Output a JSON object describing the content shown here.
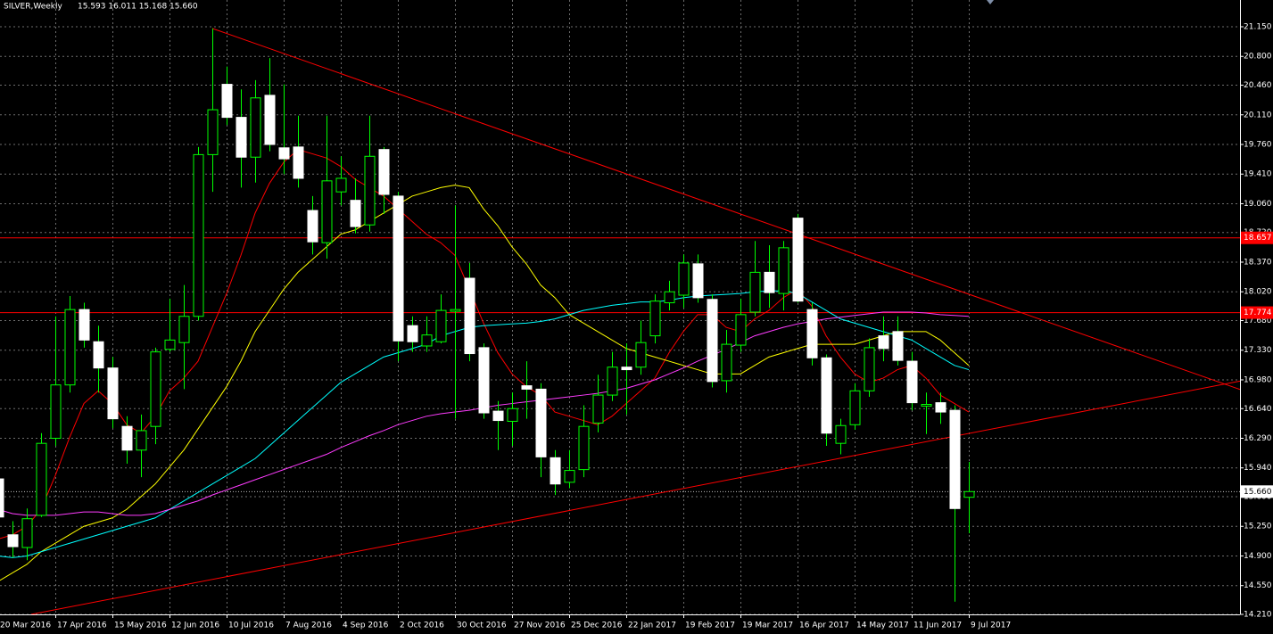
{
  "chart_data": {
    "type": "candlestick",
    "title": "SILVER,Weekly",
    "ohlc_text": "15.593 16.011 15.168 15.660",
    "categories": [
      "20 Mar 2016",
      null,
      null,
      null,
      "17 Apr 2016",
      null,
      null,
      null,
      "15 May 2016",
      null,
      null,
      null,
      "12 Jun 2016",
      null,
      null,
      null,
      "10 Jul 2016",
      null,
      null,
      null,
      "7 Aug 2016",
      null,
      null,
      null,
      "4 Sep 2016",
      null,
      null,
      null,
      "2 Oct 2016",
      null,
      null,
      null,
      "30 Oct 2016",
      null,
      null,
      null,
      "27 Nov 2016",
      null,
      null,
      null,
      "25 Dec 2016",
      null,
      null,
      null,
      "22 Jan 2017",
      null,
      null,
      null,
      "19 Feb 2017",
      null,
      null,
      null,
      "19 Mar 2017",
      null,
      null,
      null,
      "16 Apr 2017",
      null,
      null,
      null,
      "14 May 2017",
      null,
      null,
      null,
      "11 Jun 2017",
      null,
      null,
      null,
      "9 Jul 2017"
    ],
    "open": [
      15.81,
      15.15,
      15.0,
      15.38,
      16.29,
      16.92,
      17.81,
      17.43,
      17.12,
      16.43,
      16.15,
      16.43,
      17.34,
      17.42,
      17.73,
      19.64,
      20.47,
      20.08,
      19.61,
      20.34,
      19.72,
      19.73,
      18.98,
      18.6,
      19.2,
      19.1,
      18.81,
      19.7,
      19.15,
      17.62,
      17.38,
      17.43,
      17.79,
      18.18,
      17.36,
      16.61,
      16.49,
      16.91,
      16.87,
      16.06,
      15.77,
      15.92,
      16.47,
      16.8,
      17.13,
      17.13,
      17.5,
      17.89,
      17.98,
      18.35,
      17.93,
      16.97,
      17.39,
      17.78,
      18.25,
      18.0,
      18.89,
      17.81,
      17.24,
      16.23,
      16.45,
      16.85,
      17.5,
      17.55,
      17.2,
      16.67,
      16.71,
      16.62,
      15.593
    ],
    "high": [
      15.88,
      15.31,
      15.46,
      16.35,
      17.73,
      17.97,
      17.89,
      17.62,
      17.25,
      16.55,
      16.57,
      17.36,
      17.94,
      18.1,
      19.73,
      21.13,
      20.68,
      20.41,
      20.52,
      20.78,
      20.47,
      20.1,
      19.15,
      20.1,
      19.62,
      19.36,
      20.1,
      19.73,
      19.2,
      17.73,
      17.73,
      17.99,
      19.04,
      18.36,
      17.41,
      16.73,
      16.83,
      17.2,
      16.94,
      16.15,
      16.15,
      16.68,
      17.04,
      17.31,
      17.41,
      17.68,
      17.99,
      18.15,
      18.46,
      18.46,
      17.99,
      17.57,
      17.94,
      18.62,
      18.57,
      18.62,
      18.94,
      17.89,
      17.28,
      16.52,
      16.94,
      17.47,
      17.73,
      17.73,
      17.31,
      16.83,
      16.83,
      16.68,
      16.011
    ],
    "low": [
      15.31,
      14.88,
      14.85,
      15.36,
      16.2,
      16.83,
      17.36,
      16.83,
      16.41,
      15.99,
      15.83,
      16.22,
      17.31,
      16.87,
      17.68,
      19.2,
      19.99,
      19.25,
      19.31,
      19.68,
      19.41,
      19.25,
      18.46,
      18.41,
      19.04,
      18.71,
      18.73,
      18.94,
      17.2,
      17.31,
      17.31,
      17.41,
      16.52,
      17.2,
      16.52,
      16.15,
      16.2,
      16.52,
      15.83,
      15.62,
      15.7,
      15.83,
      16.36,
      16.73,
      16.57,
      17.04,
      17.41,
      17.8,
      17.83,
      17.89,
      16.89,
      16.83,
      17.31,
      17.73,
      17.83,
      17.8,
      17.89,
      17.15,
      16.2,
      16.1,
      16.39,
      16.78,
      17.2,
      17.15,
      16.62,
      16.34,
      16.46,
      14.36,
      15.168
    ],
    "close": [
      15.36,
      15.01,
      15.34,
      16.23,
      16.92,
      17.81,
      17.45,
      17.12,
      16.52,
      16.15,
      16.38,
      17.31,
      17.45,
      17.73,
      19.64,
      20.17,
      20.08,
      19.61,
      20.31,
      19.76,
      19.59,
      19.36,
      18.61,
      19.33,
      19.36,
      18.79,
      19.62,
      19.17,
      17.44,
      17.43,
      17.51,
      17.8,
      17.81,
      17.29,
      16.59,
      16.5,
      16.64,
      16.87,
      16.07,
      15.75,
      15.91,
      16.43,
      16.8,
      17.13,
      17.1,
      17.42,
      17.91,
      18.02,
      18.36,
      17.95,
      16.96,
      17.4,
      17.75,
      18.25,
      18.01,
      18.54,
      17.91,
      17.24,
      16.35,
      16.44,
      16.85,
      17.36,
      17.35,
      17.21,
      16.71,
      16.69,
      16.6,
      15.46,
      15.66
    ],
    "up_color": "#00ff00",
    "down_color": "#ffffff",
    "lines": [
      {
        "color": "#ff0000",
        "values": [
          15.1,
          15.15,
          15.25,
          15.45,
          15.85,
          16.3,
          16.7,
          16.85,
          16.7,
          16.45,
          16.35,
          16.55,
          16.85,
          17.0,
          17.2,
          17.6,
          18.0,
          18.45,
          18.95,
          19.3,
          19.55,
          19.7,
          19.65,
          19.6,
          19.5,
          19.35,
          19.25,
          19.15,
          19.0,
          18.85,
          18.7,
          18.6,
          18.45,
          18.05,
          17.65,
          17.3,
          17.05,
          16.9,
          16.8,
          16.6,
          16.55,
          16.5,
          16.45,
          16.55,
          16.7,
          16.85,
          17.0,
          17.3,
          17.55,
          17.75,
          17.75,
          17.6,
          17.55,
          17.7,
          17.8,
          17.95,
          18.05,
          17.85,
          17.5,
          17.25,
          17.05,
          16.95,
          17.0,
          17.1,
          17.15,
          17.0,
          16.8,
          16.7,
          16.6
        ]
      },
      {
        "color": "#ffff00",
        "values": [
          14.6,
          14.7,
          14.8,
          14.95,
          15.05,
          15.15,
          15.25,
          15.3,
          15.35,
          15.45,
          15.6,
          15.75,
          15.95,
          16.15,
          16.4,
          16.65,
          16.9,
          17.2,
          17.55,
          17.8,
          18.05,
          18.25,
          18.4,
          18.55,
          18.7,
          18.75,
          18.85,
          18.95,
          19.05,
          19.15,
          19.2,
          19.25,
          19.28,
          19.25,
          19.0,
          18.8,
          18.55,
          18.35,
          18.1,
          17.95,
          17.75,
          17.65,
          17.55,
          17.45,
          17.35,
          17.3,
          17.25,
          17.2,
          17.15,
          17.1,
          17.05,
          17.05,
          17.05,
          17.15,
          17.25,
          17.3,
          17.35,
          17.4,
          17.4,
          17.4,
          17.4,
          17.45,
          17.5,
          17.55,
          17.55,
          17.55,
          17.45,
          17.3,
          17.15
        ]
      },
      {
        "color": "#00ffff",
        "values": [
          14.9,
          14.88,
          14.9,
          14.95,
          15.0,
          15.05,
          15.1,
          15.15,
          15.2,
          15.25,
          15.3,
          15.35,
          15.45,
          15.55,
          15.65,
          15.75,
          15.85,
          15.95,
          16.05,
          16.2,
          16.35,
          16.5,
          16.65,
          16.8,
          16.95,
          17.05,
          17.15,
          17.25,
          17.3,
          17.35,
          17.4,
          17.5,
          17.55,
          17.6,
          17.62,
          17.63,
          17.64,
          17.65,
          17.67,
          17.7,
          17.75,
          17.8,
          17.83,
          17.86,
          17.88,
          17.9,
          17.9,
          17.92,
          17.95,
          17.97,
          17.98,
          17.99,
          18.0,
          18.02,
          18.03,
          18.03,
          18.0,
          17.9,
          17.8,
          17.7,
          17.65,
          17.6,
          17.55,
          17.5,
          17.45,
          17.35,
          17.25,
          17.15,
          17.1
        ]
      },
      {
        "color": "#ff3cff",
        "values": [
          15.45,
          15.4,
          15.38,
          15.38,
          15.38,
          15.4,
          15.42,
          15.42,
          15.4,
          15.38,
          15.38,
          15.4,
          15.45,
          15.5,
          15.55,
          15.62,
          15.68,
          15.74,
          15.8,
          15.86,
          15.92,
          15.98,
          16.04,
          16.1,
          16.18,
          16.25,
          16.32,
          16.38,
          16.45,
          16.5,
          16.55,
          16.58,
          16.6,
          16.62,
          16.65,
          16.68,
          16.7,
          16.72,
          16.74,
          16.76,
          16.78,
          16.8,
          16.82,
          16.85,
          16.88,
          16.93,
          16.98,
          17.05,
          17.12,
          17.2,
          17.27,
          17.34,
          17.42,
          17.5,
          17.55,
          17.6,
          17.64,
          17.67,
          17.7,
          17.72,
          17.74,
          17.76,
          17.78,
          17.78,
          17.78,
          17.77,
          17.75,
          17.74,
          17.73
        ]
      }
    ],
    "trendlines": [
      {
        "color": "#ff0000",
        "from": [
          15,
          21.13
        ],
        "to": [
          89.3,
          16.73
        ]
      },
      {
        "color": "#ff0000",
        "from": [
          2.3,
          14.21
        ],
        "to": [
          89.3,
          17.04
        ]
      }
    ],
    "hlines": [
      {
        "value": 18.657,
        "color": "#ff0000"
      },
      {
        "value": 17.774,
        "color": "#ff0000"
      }
    ],
    "price_line": {
      "value": 15.66,
      "label": "15.660",
      "color": "#c0c0c0"
    },
    "ylim": [
      14.21,
      21.466
    ],
    "yticks": [
      {
        "value": 14.21,
        "label": "14.210"
      },
      {
        "value": 14.55,
        "label": "14.550"
      },
      {
        "value": 14.9,
        "label": "14.900"
      },
      {
        "value": 15.25,
        "label": "15.250"
      },
      {
        "value": 15.6,
        "label": "15.600"
      },
      {
        "value": 15.94,
        "label": "15.940"
      },
      {
        "value": 16.29,
        "label": "16.290"
      },
      {
        "value": 16.64,
        "label": "16.640"
      },
      {
        "value": 16.98,
        "label": "16.980"
      },
      {
        "value": 17.33,
        "label": "17.330"
      },
      {
        "value": 17.68,
        "label": "17.680"
      },
      {
        "value": 18.02,
        "label": "18.020"
      },
      {
        "value": 18.37,
        "label": "18.370"
      },
      {
        "value": 18.72,
        "label": "18.720"
      },
      {
        "value": 19.06,
        "label": "19.060"
      },
      {
        "value": 19.41,
        "label": "19.410"
      },
      {
        "value": 19.76,
        "label": "19.760"
      },
      {
        "value": 20.11,
        "label": "20.110"
      },
      {
        "value": 20.46,
        "label": "20.460"
      },
      {
        "value": 20.8,
        "label": "20.800"
      },
      {
        "value": 21.15,
        "label": "21.150"
      }
    ],
    "grid": true
  }
}
